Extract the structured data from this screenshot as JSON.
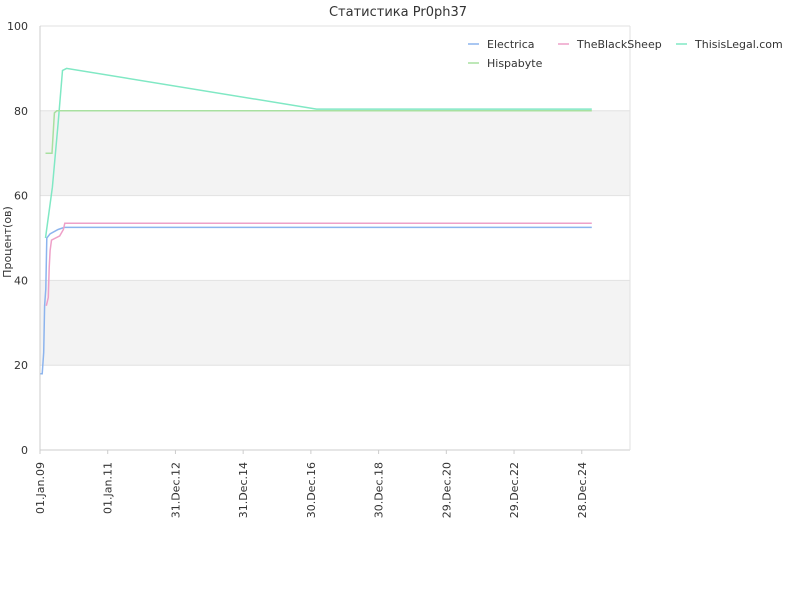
{
  "chart_data": {
    "type": "line",
    "title": "Статистика Pr0ph37",
    "xlabel": "",
    "ylabel": "Процент(ов)",
    "ylim": [
      0,
      100
    ],
    "yticks": [
      0,
      20,
      40,
      60,
      80,
      100
    ],
    "xlim": [
      "2009-01-01",
      "2026-06-01"
    ],
    "xtick_labels": [
      "01.Jan.09",
      "01.Jan.11",
      "31.Dec.12",
      "31.Dec.14",
      "30.Dec.16",
      "30.Dec.18",
      "29.Dec.20",
      "29.Dec.22",
      "28.Dec.24"
    ],
    "xtick_dates": [
      "2009-01-01",
      "2011-01-01",
      "2012-12-31",
      "2014-12-31",
      "2016-12-30",
      "2018-12-30",
      "2020-12-29",
      "2022-12-29",
      "2024-12-28"
    ],
    "grid": "alternating horizontal bands",
    "legend": "top-right",
    "series": [
      {
        "name": "Electrica",
        "color": "#8cb4ee",
        "points": [
          [
            "2009-01-05",
            18
          ],
          [
            "2009-01-25",
            18
          ],
          [
            "2009-02-10",
            23
          ],
          [
            "2009-02-20",
            34
          ],
          [
            "2009-03-05",
            38
          ],
          [
            "2009-03-15",
            50
          ],
          [
            "2009-04-20",
            51
          ],
          [
            "2009-07-15",
            52
          ],
          [
            "2009-09-20",
            52.5
          ],
          [
            "2025-04-15",
            52.5
          ]
        ]
      },
      {
        "name": "TheBlackSheep",
        "color": "#eea0c8",
        "points": [
          [
            "2009-03-10",
            34
          ],
          [
            "2009-04-01",
            36
          ],
          [
            "2009-04-10",
            43
          ],
          [
            "2009-04-20",
            47
          ],
          [
            "2009-05-05",
            49.5
          ],
          [
            "2009-08-01",
            50.5
          ],
          [
            "2009-09-10",
            52
          ],
          [
            "2009-09-25",
            53.5
          ],
          [
            "2025-04-15",
            53.5
          ]
        ]
      },
      {
        "name": "ThisisLegal.com",
        "color": "#80e8c4",
        "points": [
          [
            "2009-03-01",
            50
          ],
          [
            "2009-05-15",
            62
          ],
          [
            "2009-07-15",
            77
          ],
          [
            "2009-09-01",
            89.5
          ],
          [
            "2009-10-15",
            90
          ],
          [
            "2017-03-01",
            80.4
          ],
          [
            "2025-04-15",
            80.4
          ]
        ]
      },
      {
        "name": "Hispabyte",
        "color": "#a8e0a0",
        "points": [
          [
            "2009-03-01",
            70
          ],
          [
            "2009-05-10",
            70
          ],
          [
            "2009-06-05",
            79.5
          ],
          [
            "2009-07-01",
            80
          ],
          [
            "2025-04-15",
            80
          ]
        ]
      }
    ]
  }
}
